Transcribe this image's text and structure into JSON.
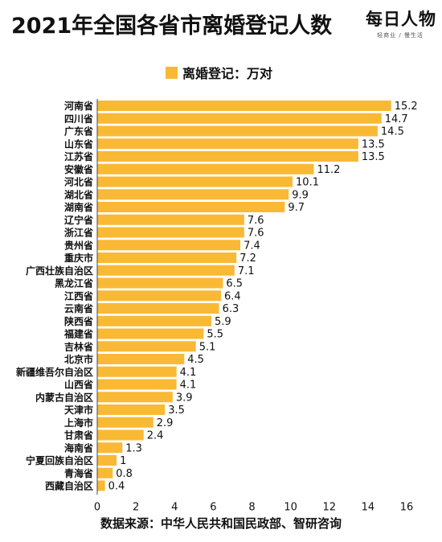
{
  "title": "2021年全国各省市离婚登记人数",
  "logo": {
    "main": "每日人物",
    "sub": "轻商业 / 慢生活"
  },
  "legend": {
    "label": "离婚登记：万对",
    "color": "#F9B935"
  },
  "source": "数据来源：中华人民共和国民政部、智研咨询",
  "chart_data": {
    "type": "bar",
    "orientation": "horizontal",
    "title": "2021年全国各省市离婚登记人数",
    "categories": [
      "河南省",
      "四川省",
      "广东省",
      "山东省",
      "江苏省",
      "安徽省",
      "河北省",
      "湖北省",
      "湖南省",
      "辽宁省",
      "浙江省",
      "贵州省",
      "重庆市",
      "广西壮族自治区",
      "黑龙江省",
      "江西省",
      "云南省",
      "陕西省",
      "福建省",
      "吉林省",
      "北京市",
      "新疆维吾尔自治区",
      "山西省",
      "内蒙古自治区",
      "天津市",
      "上海市",
      "甘肃省",
      "海南省",
      "宁夏回族自治区",
      "青海省",
      "西藏自治区"
    ],
    "series": [
      {
        "name": "离婚登记：万对",
        "values": [
          15.2,
          14.7,
          14.5,
          13.5,
          13.5,
          11.2,
          10.1,
          9.9,
          9.7,
          7.6,
          7.6,
          7.4,
          7.2,
          7.1,
          6.5,
          6.4,
          6.3,
          5.9,
          5.5,
          5.1,
          4.5,
          4.1,
          4.1,
          3.9,
          3.5,
          2.9,
          2.4,
          1.3,
          1,
          0.8,
          0.4
        ],
        "labels": [
          "15.2",
          "14.7",
          "14.5",
          "13.5",
          "13.5",
          "11.2",
          "10.1",
          "9.9",
          "9.7",
          "7.6",
          "7.6",
          "7.4",
          "7.2",
          "7.1",
          "6.5",
          "6.4",
          "6.3",
          "5.9",
          "5.5",
          "5.1",
          "4.5",
          "4.1",
          "4.1",
          "3.9",
          "3.5",
          "2.9",
          "2.4",
          "1.3",
          "1",
          "0.8",
          "0.4"
        ]
      }
    ],
    "xlim": [
      0,
      16
    ],
    "xticks": [
      "0",
      "2",
      "4",
      "6",
      "8",
      "10",
      "12",
      "14",
      "16"
    ],
    "grid": false,
    "legend_position": "top-center",
    "bar_color": "#F9B935"
  }
}
